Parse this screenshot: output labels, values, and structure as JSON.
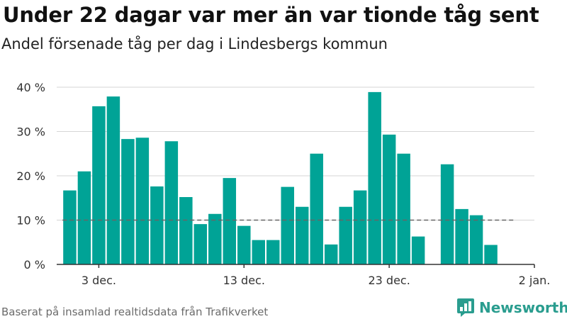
{
  "title": "Under 22 dagar var mer än var tionde tåg sent",
  "subtitle": "Andel försenade tåg per dag i Lindesbergs kommun",
  "source": "Baserat på insamlad realtidsdata från Trafikverket",
  "brand": {
    "name": "Newsworthy",
    "color": "#2a9d8f",
    "icon": "bar-chart-bubble-icon"
  },
  "chart_data": {
    "type": "bar",
    "title": "Under 22 dagar var mer än var tionde tåg sent",
    "subtitle": "Andel försenade tåg per dag i Lindesbergs kommun",
    "x_start": "2023-12-01",
    "x_end": "2024-01-02",
    "x_ticks": [
      {
        "date": "2023-12-03",
        "label": "3 dec."
      },
      {
        "date": "2023-12-13",
        "label": "13 dec."
      },
      {
        "date": "2023-12-23",
        "label": "23 dec."
      },
      {
        "date": "2024-01-02",
        "label": "2 jan."
      }
    ],
    "y_ticks": [
      {
        "value": 0,
        "label": "0 %"
      },
      {
        "value": 10,
        "label": "10 %"
      },
      {
        "value": 20,
        "label": "20 %"
      },
      {
        "value": 30,
        "label": "30 %"
      },
      {
        "value": 40,
        "label": "40 %"
      }
    ],
    "ylim": [
      0,
      40
    ],
    "grid": true,
    "reference_line": 10,
    "bar_color": "#00a396",
    "bars": [
      {
        "date": "2023-12-01",
        "value": 16.7
      },
      {
        "date": "2023-12-02",
        "value": 21.0
      },
      {
        "date": "2023-12-03",
        "value": 35.7
      },
      {
        "date": "2023-12-04",
        "value": 37.9
      },
      {
        "date": "2023-12-05",
        "value": 28.3
      },
      {
        "date": "2023-12-06",
        "value": 28.6
      },
      {
        "date": "2023-12-07",
        "value": 17.6
      },
      {
        "date": "2023-12-08",
        "value": 27.8
      },
      {
        "date": "2023-12-09",
        "value": 15.2
      },
      {
        "date": "2023-12-10",
        "value": 9.1
      },
      {
        "date": "2023-12-11",
        "value": 11.4
      },
      {
        "date": "2023-12-12",
        "value": 19.5
      },
      {
        "date": "2023-12-13",
        "value": 8.7
      },
      {
        "date": "2023-12-14",
        "value": 5.5
      },
      {
        "date": "2023-12-15",
        "value": 5.5
      },
      {
        "date": "2023-12-16",
        "value": 17.5
      },
      {
        "date": "2023-12-17",
        "value": 13.0
      },
      {
        "date": "2023-12-18",
        "value": 25.0
      },
      {
        "date": "2023-12-19",
        "value": 4.5
      },
      {
        "date": "2023-12-20",
        "value": 13.0
      },
      {
        "date": "2023-12-21",
        "value": 16.7
      },
      {
        "date": "2023-12-22",
        "value": 38.9
      },
      {
        "date": "2023-12-23",
        "value": 29.3
      },
      {
        "date": "2023-12-24",
        "value": 25.0
      },
      {
        "date": "2023-12-25",
        "value": 6.3
      },
      {
        "date": "2023-12-27",
        "value": 22.6
      },
      {
        "date": "2023-12-28",
        "value": 12.5
      },
      {
        "date": "2023-12-29",
        "value": 11.1
      },
      {
        "date": "2023-12-30",
        "value": 4.4
      }
    ]
  }
}
